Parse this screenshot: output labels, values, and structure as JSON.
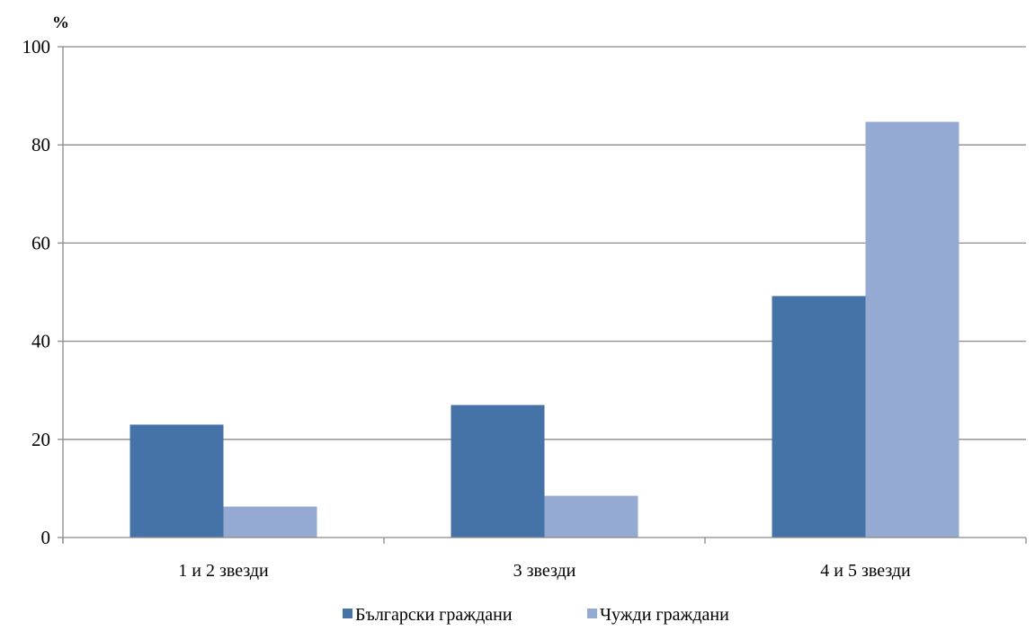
{
  "chart_data": {
    "type": "bar",
    "title": "",
    "ylabel": "%",
    "xlabel": "",
    "categories": [
      "1 и 2 звезди",
      "3 звезди",
      "4 и 5 звезди"
    ],
    "series": [
      {
        "name": "Български граждани",
        "color": "#4572A7",
        "values": [
          23,
          27,
          49.2
        ]
      },
      {
        "name": "Чужди граждани",
        "color": "#95AAD3",
        "values": [
          6.3,
          8.5,
          84.7
        ]
      }
    ],
    "ylim": [
      0,
      100
    ],
    "yticks": [
      "0",
      "20",
      "40",
      "60",
      "80",
      "100"
    ],
    "grid": true,
    "legend": "bottom"
  }
}
